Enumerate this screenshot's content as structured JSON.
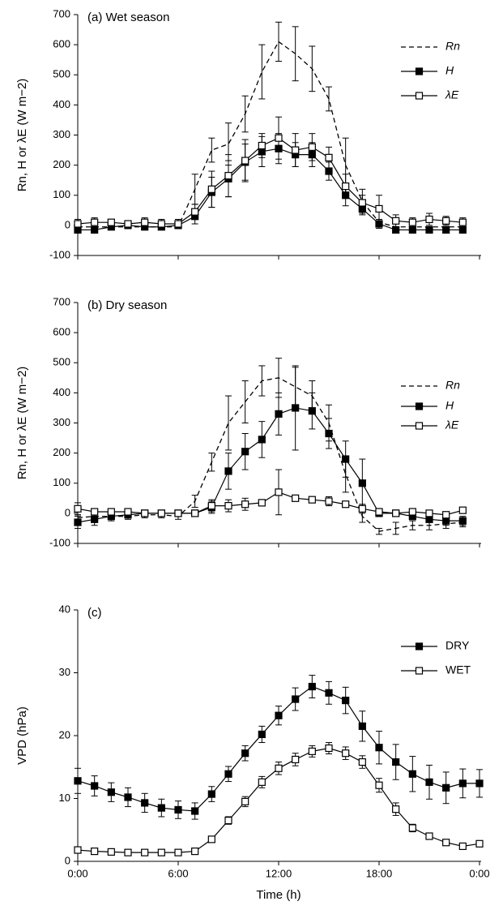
{
  "chart_data": [
    {
      "type": "line",
      "title": "(a) Wet season",
      "ylabel": "Rn, H or λE (W m−2)",
      "legend": "upper right",
      "x": [
        0,
        1,
        2,
        3,
        4,
        5,
        6,
        7,
        8,
        9,
        10,
        11,
        12,
        13,
        14,
        15,
        16,
        17,
        18,
        19,
        20,
        21,
        22,
        23
      ],
      "xlim": [
        0,
        24
      ],
      "xticks": [
        0,
        6,
        12,
        18,
        24
      ],
      "ylim": [
        -100,
        700
      ],
      "yticks": [
        -100,
        0,
        100,
        200,
        300,
        400,
        500,
        600,
        700
      ],
      "series": [
        {
          "name": "Rn",
          "color": "#000000",
          "line_style": "dashed",
          "marker": "none",
          "values": [
            -5,
            -5,
            -5,
            -5,
            -5,
            -5,
            -5,
            120,
            250,
            270,
            370,
            510,
            610,
            570,
            520,
            420,
            200,
            80,
            10,
            -5,
            -5,
            -5,
            -5,
            -5
          ],
          "errors": [
            0,
            0,
            0,
            0,
            0,
            0,
            0,
            50,
            40,
            70,
            60,
            90,
            65,
            90,
            75,
            40,
            90,
            40,
            0,
            0,
            0,
            0,
            0,
            0
          ]
        },
        {
          "name": "H",
          "color": "#000000",
          "line_style": "solid",
          "marker": "filled-square",
          "values": [
            -15,
            -15,
            -5,
            0,
            -5,
            -5,
            0,
            30,
            110,
            155,
            210,
            245,
            255,
            235,
            235,
            180,
            100,
            55,
            5,
            -15,
            -15,
            -15,
            -15,
            -15
          ],
          "errors": [
            10,
            10,
            10,
            10,
            10,
            10,
            10,
            25,
            50,
            60,
            60,
            50,
            50,
            40,
            40,
            30,
            35,
            20,
            15,
            10,
            10,
            10,
            10,
            10
          ]
        },
        {
          "name": "λE",
          "color": "#000000",
          "line_style": "solid",
          "marker": "open-square",
          "values": [
            5,
            10,
            10,
            5,
            10,
            5,
            5,
            45,
            120,
            165,
            215,
            265,
            290,
            250,
            260,
            225,
            130,
            75,
            55,
            15,
            10,
            20,
            15,
            10
          ],
          "errors": [
            15,
            15,
            10,
            10,
            15,
            15,
            15,
            25,
            60,
            70,
            70,
            40,
            70,
            55,
            45,
            35,
            40,
            25,
            45,
            20,
            15,
            20,
            15,
            15
          ]
        }
      ]
    },
    {
      "type": "line",
      "title": "(b) Dry season",
      "ylabel": "Rn, H or λE (W m−2)",
      "legend": "upper right",
      "x": [
        0,
        1,
        2,
        3,
        4,
        5,
        6,
        7,
        8,
        9,
        10,
        11,
        12,
        13,
        14,
        15,
        16,
        17,
        18,
        19,
        20,
        21,
        22,
        23
      ],
      "xlim": [
        0,
        24
      ],
      "xticks": [
        0,
        6,
        12,
        18,
        24
      ],
      "ylim": [
        -100,
        700
      ],
      "yticks": [
        -100,
        0,
        100,
        200,
        300,
        400,
        500,
        600,
        700
      ],
      "series": [
        {
          "name": "Rn",
          "color": "#000000",
          "line_style": "dashed",
          "marker": "none",
          "values": [
            -15,
            -10,
            -10,
            -10,
            -5,
            -5,
            -10,
            40,
            170,
            300,
            370,
            440,
            450,
            420,
            390,
            300,
            130,
            -10,
            -60,
            -50,
            -40,
            -40,
            -35,
            -30
          ],
          "errors": [
            10,
            10,
            10,
            10,
            10,
            10,
            10,
            20,
            30,
            90,
            70,
            50,
            65,
            65,
            50,
            60,
            60,
            20,
            10,
            20,
            15,
            15,
            15,
            15
          ]
        },
        {
          "name": "H",
          "color": "#000000",
          "line_style": "solid",
          "marker": "filled-square",
          "values": [
            -30,
            -20,
            -10,
            -5,
            0,
            0,
            0,
            0,
            20,
            140,
            205,
            245,
            330,
            350,
            340,
            265,
            180,
            100,
            0,
            0,
            -10,
            -20,
            -25,
            -25
          ],
          "errors": [
            20,
            20,
            15,
            10,
            5,
            5,
            5,
            5,
            20,
            60,
            60,
            60,
            70,
            140,
            60,
            50,
            60,
            80,
            10,
            10,
            10,
            10,
            15,
            15
          ]
        },
        {
          "name": "λE",
          "color": "#000000",
          "line_style": "solid",
          "marker": "open-square",
          "values": [
            15,
            5,
            5,
            5,
            0,
            0,
            0,
            0,
            25,
            25,
            30,
            35,
            70,
            50,
            45,
            40,
            30,
            15,
            5,
            0,
            5,
            0,
            -5,
            10
          ],
          "errors": [
            20,
            10,
            10,
            10,
            5,
            5,
            5,
            5,
            20,
            20,
            20,
            10,
            75,
            10,
            10,
            15,
            10,
            15,
            10,
            10,
            10,
            10,
            10,
            10
          ]
        }
      ]
    },
    {
      "type": "line",
      "title": "(c)",
      "ylabel": "VPD (hPa)",
      "xlabel": "Time (h)",
      "legend": "upper right",
      "x": [
        0,
        1,
        2,
        3,
        4,
        5,
        6,
        7,
        8,
        9,
        10,
        11,
        12,
        13,
        14,
        15,
        16,
        17,
        18,
        19,
        20,
        21,
        22,
        23,
        24
      ],
      "xlim": [
        0,
        24
      ],
      "xticks": [
        {
          "value": 0,
          "label": "0:00"
        },
        {
          "value": 6,
          "label": "6:00"
        },
        {
          "value": 12,
          "label": "12:00"
        },
        {
          "value": 18,
          "label": "18:00"
        },
        {
          "value": 24,
          "label": "0:00"
        }
      ],
      "ylim": [
        0,
        40
      ],
      "yticks": [
        0,
        10,
        20,
        30,
        40
      ],
      "series": [
        {
          "name": "DRY",
          "color": "#000000",
          "line_style": "solid",
          "marker": "filled-square",
          "values": [
            12.8,
            12,
            11,
            10.2,
            9.3,
            8.5,
            8.2,
            8,
            10.7,
            13.9,
            17.2,
            20.2,
            23.2,
            25.8,
            27.8,
            26.8,
            25.6,
            21.5,
            18.1,
            15.8,
            13.9,
            12.6,
            11.7,
            12.4,
            12.4
          ],
          "errors": [
            2,
            1.6,
            1.5,
            1.5,
            1.5,
            1.4,
            1.4,
            1.3,
            1.2,
            1.2,
            1.2,
            1.3,
            1.5,
            1.8,
            1.8,
            1.8,
            2.1,
            2.4,
            2.6,
            2.8,
            2.8,
            2.7,
            2.5,
            2.3,
            2.2
          ]
        },
        {
          "name": "WET",
          "color": "#000000",
          "line_style": "solid",
          "marker": "open-square",
          "values": [
            1.8,
            1.6,
            1.5,
            1.4,
            1.4,
            1.4,
            1.4,
            1.6,
            3.5,
            6.5,
            9.5,
            12.6,
            14.8,
            16.2,
            17.5,
            18,
            17.2,
            15.8,
            12.1,
            8.3,
            5.3,
            4,
            3,
            2.4,
            2.8
          ],
          "errors": [
            0.3,
            0.3,
            0.3,
            0.3,
            0.3,
            0.3,
            0.3,
            0.3,
            0.4,
            0.6,
            0.8,
            0.9,
            1,
            1,
            0.9,
            0.9,
            1,
            1,
            1.1,
            1,
            0.6,
            0.5,
            0.3,
            0.3,
            0.3
          ]
        }
      ]
    }
  ]
}
